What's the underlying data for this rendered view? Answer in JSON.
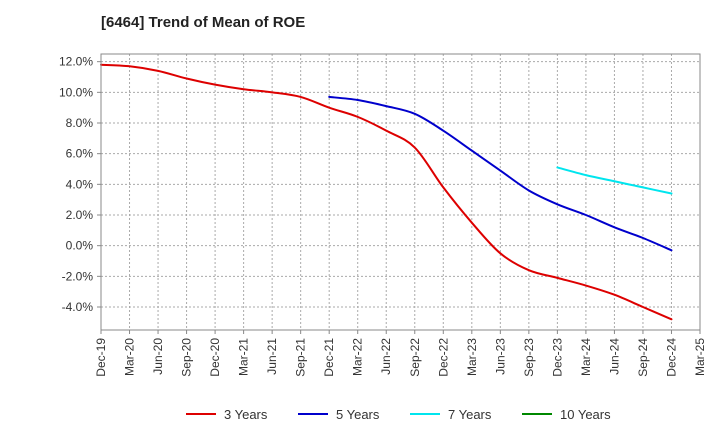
{
  "chart_data": {
    "type": "line",
    "title": "[6464]  Trend of Mean of ROE",
    "xlabel": "",
    "ylabel": "",
    "categories": [
      "Dec-19",
      "Mar-20",
      "Jun-20",
      "Sep-20",
      "Dec-20",
      "Mar-21",
      "Jun-21",
      "Sep-21",
      "Dec-21",
      "Mar-22",
      "Jun-22",
      "Sep-22",
      "Dec-22",
      "Mar-23",
      "Jun-23",
      "Sep-23",
      "Dec-23",
      "Mar-24",
      "Jun-24",
      "Sep-24",
      "Dec-24",
      "Mar-25"
    ],
    "ylim": [
      -5.5,
      12.5
    ],
    "yticks": [
      12,
      10,
      8,
      6,
      4,
      2,
      0,
      -2,
      -4
    ],
    "ytick_labels": [
      "12.0%",
      "10.0%",
      "8.0%",
      "6.0%",
      "4.0%",
      "2.0%",
      "0.0%",
      "-2.0%",
      "-4.0%"
    ],
    "grid": true,
    "legend_position": "bottom",
    "series": [
      {
        "name": "3 Years",
        "color": "#dd0000",
        "values": [
          11.8,
          11.7,
          11.4,
          10.9,
          10.5,
          10.2,
          10.0,
          9.7,
          9.0,
          8.4,
          7.5,
          6.4,
          3.8,
          1.5,
          -0.5,
          -1.6,
          -2.1,
          -2.6,
          -3.2,
          -4.0,
          -4.8,
          null
        ]
      },
      {
        "name": "5 Years",
        "color": "#0000cc",
        "values": [
          null,
          null,
          null,
          null,
          null,
          null,
          null,
          null,
          9.7,
          9.5,
          9.1,
          8.6,
          7.5,
          6.2,
          4.9,
          3.6,
          2.7,
          2.0,
          1.2,
          0.5,
          -0.3,
          null
        ]
      },
      {
        "name": "7 Years",
        "color": "#00e5ee",
        "values": [
          null,
          null,
          null,
          null,
          null,
          null,
          null,
          null,
          null,
          null,
          null,
          null,
          null,
          null,
          null,
          null,
          5.1,
          4.6,
          4.2,
          3.8,
          3.4,
          null
        ]
      },
      {
        "name": "10 Years",
        "color": "#008800",
        "values": [
          null,
          null,
          null,
          null,
          null,
          null,
          null,
          null,
          null,
          null,
          null,
          null,
          null,
          null,
          null,
          null,
          null,
          null,
          null,
          null,
          null,
          null
        ]
      }
    ]
  }
}
